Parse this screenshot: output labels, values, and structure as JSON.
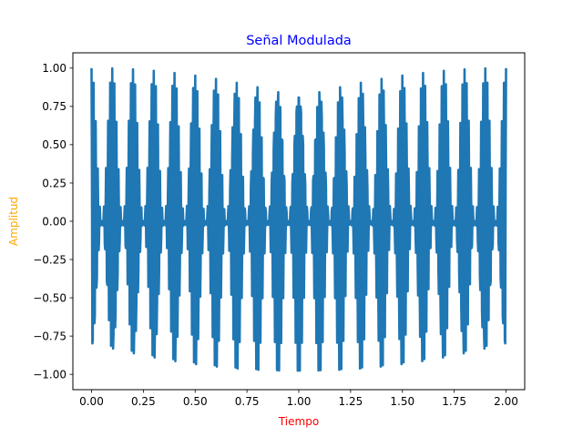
{
  "chart_data": {
    "type": "line",
    "title": "Señal Modulada",
    "xlabel": "Tiempo",
    "ylabel": "Amplitud",
    "xlim": [
      -0.09,
      2.09
    ],
    "ylim": [
      -1.1,
      1.1
    ],
    "x_ticks": [
      0.0,
      0.25,
      0.5,
      0.75,
      1.0,
      1.25,
      1.5,
      1.75,
      2.0
    ],
    "x_tick_labels": [
      "0.00",
      "0.25",
      "0.50",
      "0.75",
      "1.00",
      "1.25",
      "1.50",
      "1.75",
      "2.00"
    ],
    "y_ticks": [
      -1.0,
      -0.75,
      -0.5,
      -0.25,
      0.0,
      0.25,
      0.5,
      0.75,
      1.0
    ],
    "y_tick_labels": [
      "−1.00",
      "−0.75",
      "−0.50",
      "−0.25",
      "0.00",
      "0.25",
      "0.50",
      "0.75",
      "1.00"
    ],
    "grid": false,
    "legend": "none",
    "series": [
      {
        "color": "#1f77b4",
        "signal": "amplitude-modulated cosine",
        "x_range": [
          0,
          2
        ],
        "message_frequency_hz": 10,
        "carrier_frequency_hz": 100,
        "modulation_index": 1.0,
        "sample_count": 1000
      }
    ],
    "colors": {
      "title": "#0000ff",
      "xlabel": "#ff0000",
      "ylabel": "#ffa500",
      "line": "#1f77b4"
    }
  }
}
